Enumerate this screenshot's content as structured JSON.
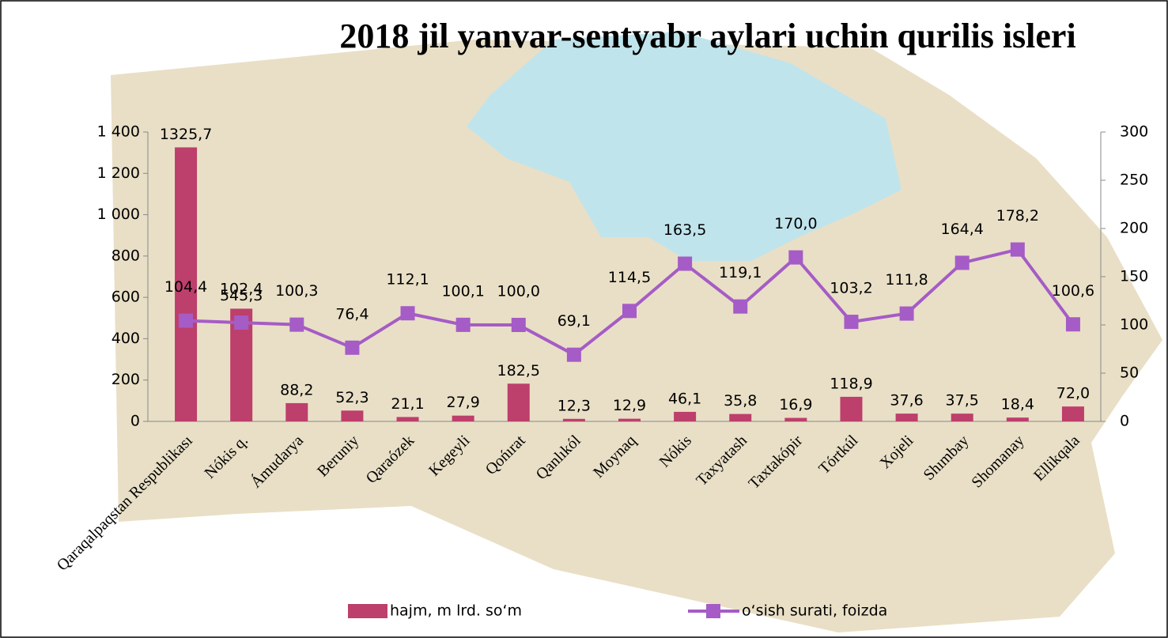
{
  "chart_data": {
    "type": "bar-line",
    "title": "2018 jil yanvar-sentyabr aylari uchin qurilis isleri",
    "categories": [
      "Qaraqalpaqstan Respublikası",
      "Nókis q.",
      "Ámudarya",
      "Beruniy",
      "Qaraózek",
      "Kegeyli",
      "Qońırat",
      "Qanlıkól",
      "Moynaq",
      "Nókis",
      "Taxyatash",
      "Taxtakópir",
      "Tórtkúl",
      "Xojeli",
      "Shımbay",
      "Shomanay",
      "Ellikqala"
    ],
    "series": [
      {
        "name": "hajm, m lrd. so‘m",
        "type": "bar",
        "color": "#bd3f6c",
        "values": [
          1325.7,
          545.3,
          88.2,
          52.3,
          21.1,
          27.9,
          182.5,
          12.3,
          12.9,
          46.1,
          35.8,
          16.9,
          118.9,
          37.6,
          37.5,
          18.4,
          72.0
        ],
        "value_labels": [
          "1325,7",
          "545,3",
          "88,2",
          "52,3",
          "21,1",
          "27,9",
          "182,5",
          "12,3",
          "12,9",
          "46,1",
          "35,8",
          "16,9",
          "118,9",
          "37,6",
          "37,5",
          "18,4",
          "72,0"
        ]
      },
      {
        "name": "o‘sish surati, foizda",
        "type": "line",
        "axis": "y2",
        "color": "#a55cc6",
        "values": [
          104.4,
          102.4,
          100.3,
          76.4,
          112.1,
          100.1,
          100.0,
          69.1,
          114.5,
          163.5,
          119.1,
          170.0,
          103.2,
          111.8,
          164.4,
          178.2,
          100.6
        ],
        "value_labels": [
          "104,4",
          "102,4",
          "100,3",
          "76,4",
          "112,1",
          "100,1",
          "100,0",
          "69,1",
          "114,5",
          "163,5",
          "119,1",
          "170,0",
          "103,2",
          "111,8",
          "164,4",
          "178,2",
          "100,6"
        ]
      }
    ],
    "ylim": [
      0,
      1400
    ],
    "yticks": [
      0,
      200,
      400,
      600,
      800,
      {
        "value": 1000,
        "label": "1 000"
      },
      {
        "value": 1200,
        "label": "1 200"
      },
      {
        "value": 1400,
        "label": "1 400"
      }
    ],
    "y2lim": [
      0,
      300
    ],
    "y2ticks": [
      0,
      50,
      100,
      150,
      200,
      250,
      300
    ],
    "legend": "bottom"
  }
}
